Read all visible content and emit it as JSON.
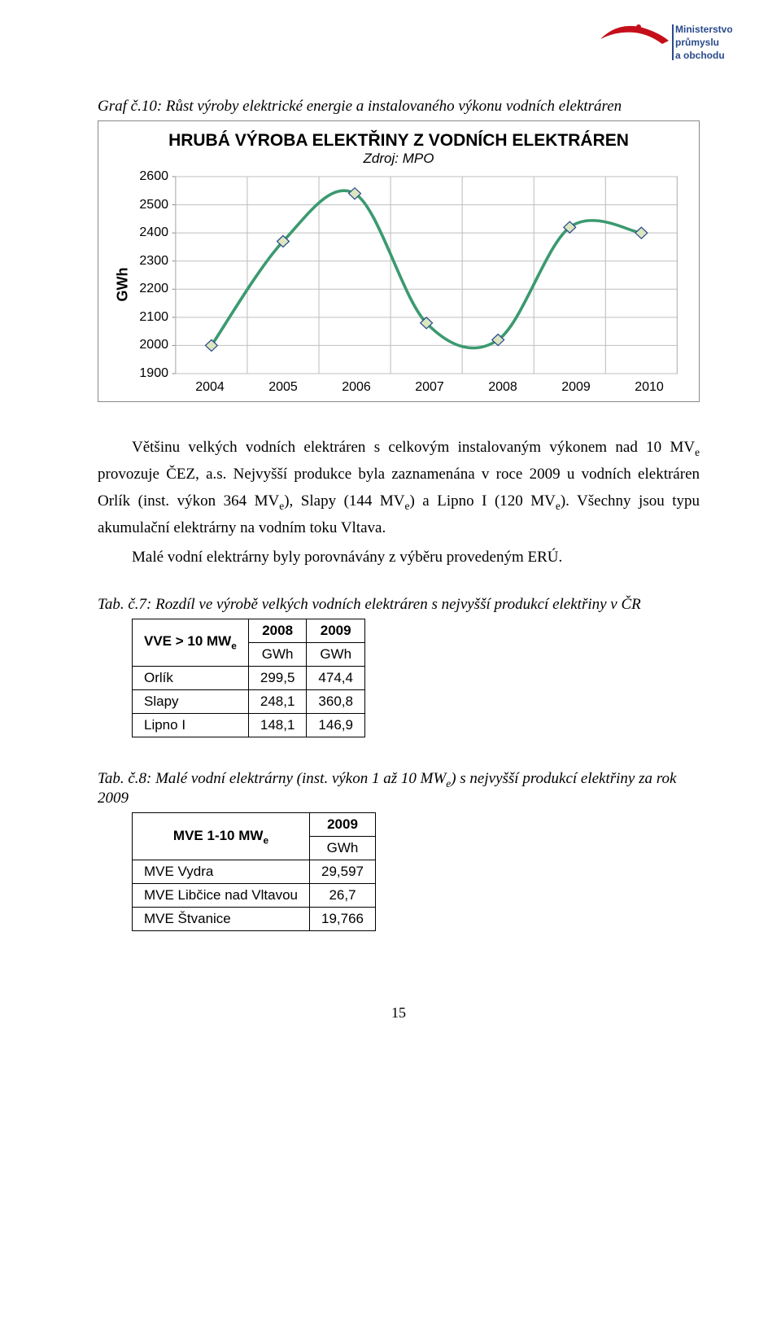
{
  "logo": {
    "top_text": "Ministerstvo",
    "mid_text": "průmyslu",
    "bot_text": "a obchodu",
    "swoosh_color": "#c40f1b",
    "text_color": "#2a4a8c"
  },
  "caption1": "Graf č.10: Růst výroby elektrické energie a instalovaného výkonu vodních elektráren",
  "chart": {
    "title": "HRUBÁ VÝROBA ELEKTŘINY Z VODNÍCH ELEKTRÁREN",
    "subtitle": "Zdroj: MPO",
    "ylabel": "GWh",
    "ylim": [
      1900,
      2600
    ],
    "ytick_step": 100,
    "yticks": [
      2600,
      2500,
      2400,
      2300,
      2200,
      2100,
      2000,
      1900
    ],
    "categories": [
      "2004",
      "2005",
      "2006",
      "2007",
      "2008",
      "2009",
      "2010"
    ],
    "values": [
      2000,
      2370,
      2540,
      2080,
      2020,
      2420,
      2400
    ],
    "line_color": "#3b9a6f",
    "line_width": 3.5,
    "marker_edge": "#2a4a8c",
    "marker_fill": "#dce6bf",
    "marker_size": 7,
    "grid_color": "#bfbfbf",
    "axis_color": "#888888",
    "background": "#ffffff"
  },
  "para1": "Většinu velkých vodních elektráren s celkovým instalovaným výkonem nad 10 MV",
  "para1_sub": "e",
  "para1_cont": " provozuje ČEZ, a.s. Nejvyšší produkce byla zaznamenána v roce 2009 u vodních elektráren Orlík (inst. výkon 364 MV",
  "para1_cont2": "), Slapy (144 MV",
  "para1_cont3": ") a Lipno I (120 MV",
  "para1_cont4": "). Všechny jsou typu akumulační elektrárny na vodním toku Vltava.",
  "para2": "Malé vodní elektrárny byly porovnávány z výběru provedeným ERÚ.",
  "caption2": "Tab. č.7: Rozdíl ve výrobě velkých vodních elektráren s nejvyšší produkcí elektřiny v ČR",
  "table1": {
    "header_label": "VVE > 10 MW",
    "header_sub": "e",
    "cols": [
      "2008",
      "2009"
    ],
    "unit": "GWh",
    "rows": [
      {
        "name": "Orlík",
        "vals": [
          "299,5",
          "474,4"
        ]
      },
      {
        "name": "Slapy",
        "vals": [
          "248,1",
          "360,8"
        ]
      },
      {
        "name": "Lipno I",
        "vals": [
          "148,1",
          "146,9"
        ]
      }
    ]
  },
  "caption3_a": "Tab. č.8: Malé vodní elektrárny (inst. výkon 1 až 10 MW",
  "caption3_sub": "e",
  "caption3_b": ") s nejvyšší produkcí elektřiny za rok 2009",
  "table2": {
    "header_label": "MVE 1-10 MW",
    "header_sub": "e",
    "cols": [
      "2009"
    ],
    "unit": "GWh",
    "rows": [
      {
        "name": "MVE Vydra",
        "vals": [
          "29,597"
        ]
      },
      {
        "name": "MVE Libčice nad Vltavou",
        "vals": [
          "26,7"
        ]
      },
      {
        "name": "MVE Štvanice",
        "vals": [
          "19,766"
        ]
      }
    ]
  },
  "page_number": "15"
}
